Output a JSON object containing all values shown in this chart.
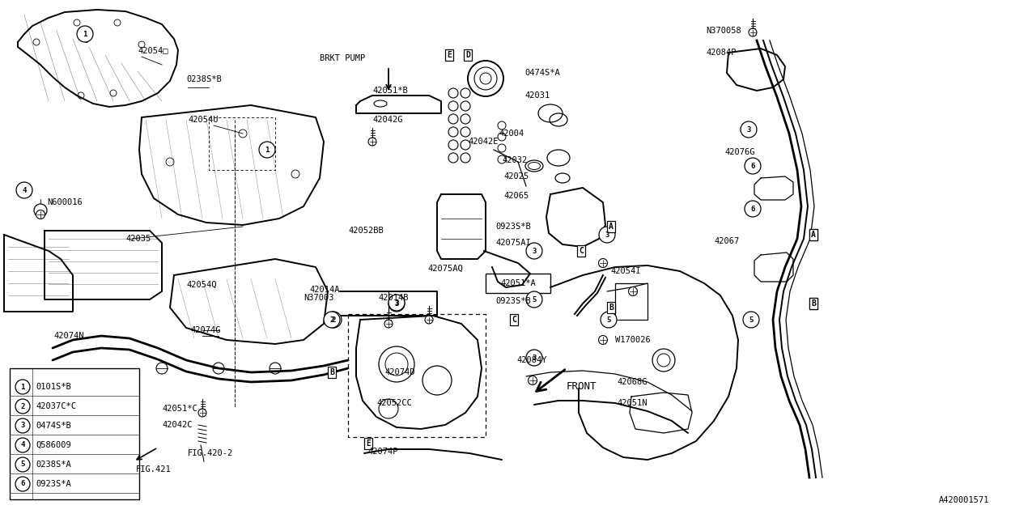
{
  "bg_color": "#ffffff",
  "line_color": "#000000",
  "fig_width": 12.8,
  "fig_height": 6.4,
  "dpi": 100,
  "legend_items": [
    {
      "num": "1",
      "text": "0101S*B"
    },
    {
      "num": "2",
      "text": "42037C*C"
    },
    {
      "num": "3",
      "text": "0474S*B"
    },
    {
      "num": "4",
      "text": "Q586009"
    },
    {
      "num": "5",
      "text": "0238S*A"
    },
    {
      "num": "6",
      "text": "0923S*A"
    }
  ]
}
